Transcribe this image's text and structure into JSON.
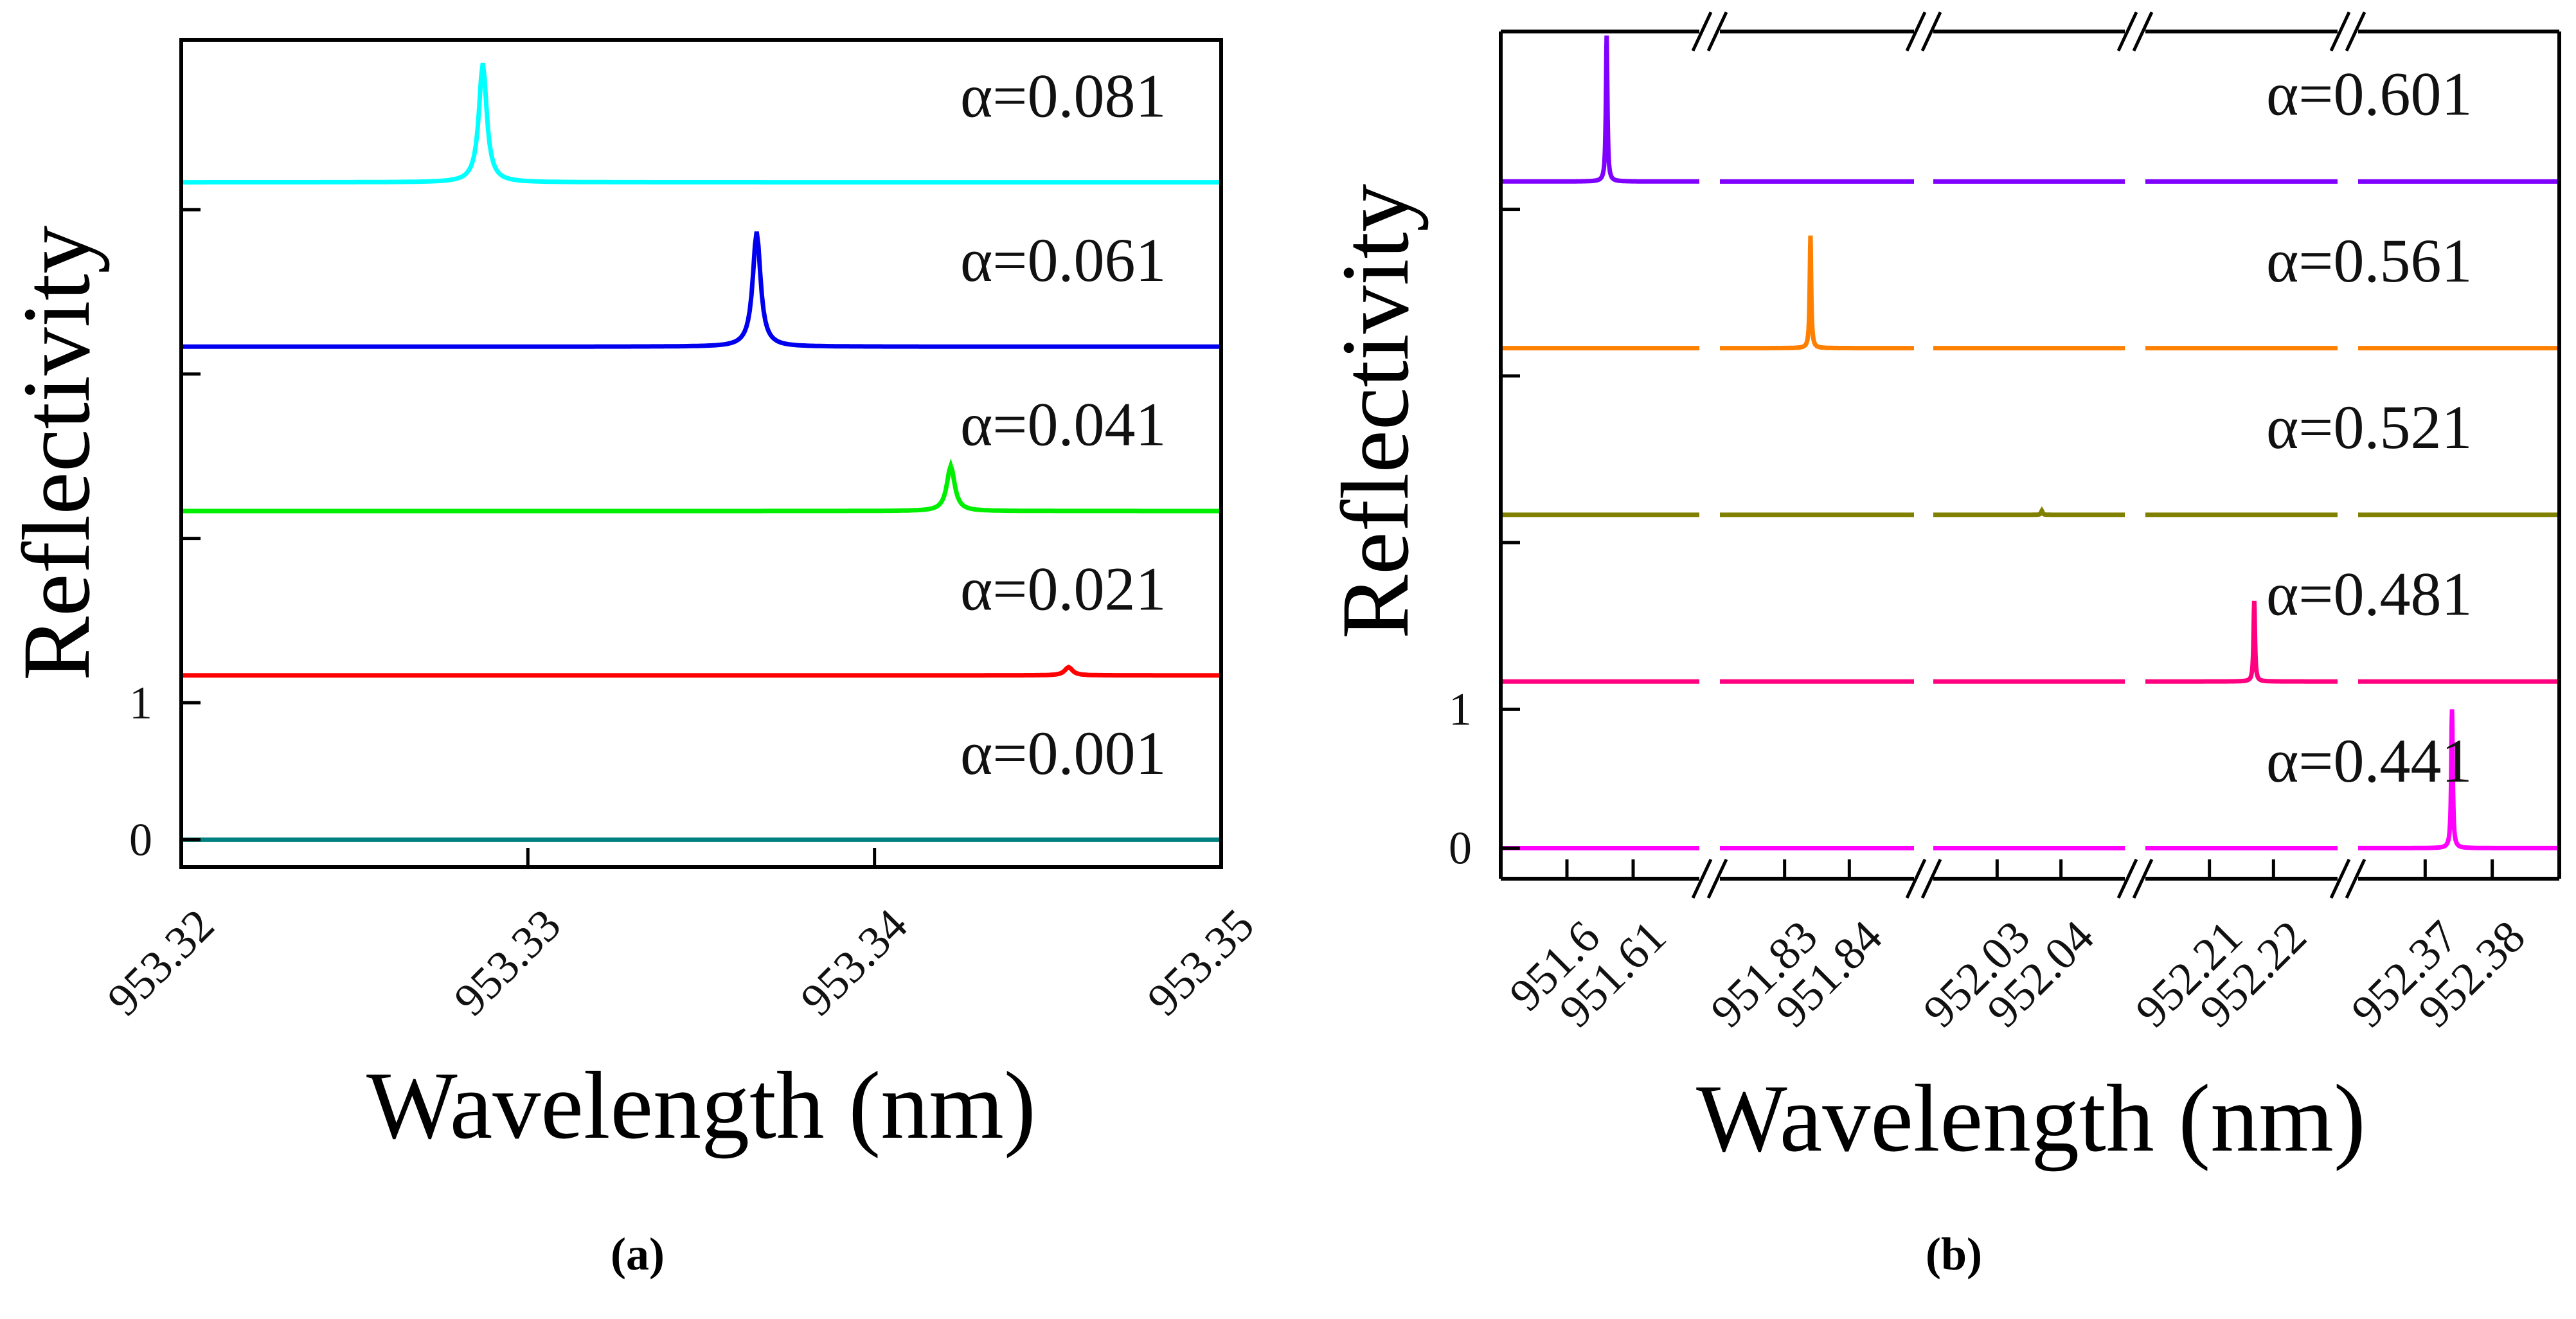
{
  "chart_data": [
    {
      "type": "line",
      "panel_label": "a",
      "caption": "(a)",
      "xlabel": "Wavelength (nm)",
      "ylabel": "Reflectivity",
      "xlim": [
        953.32,
        953.35
      ],
      "ylim": [
        -0.2,
        5.84
      ],
      "xticks": [
        953.32,
        953.33,
        953.34,
        953.35
      ],
      "xtick_labels": [
        "953.32",
        "953.33",
        "953.34",
        "953.35"
      ],
      "yticks": [
        0,
        1,
        2.2,
        3.4,
        4.6
      ],
      "ytick_labels": [
        "0",
        "1",
        "",
        "",
        ""
      ],
      "offset_step": 1.2,
      "series": [
        {
          "name": "α=0.001",
          "color": "#008080",
          "offset": 0.0,
          "peak_x": 953.3455,
          "peak_height": 0.0
        },
        {
          "name": "α=0.021",
          "color": "#ff0000",
          "offset": 1.2,
          "peak_x": 953.3456,
          "peak_height": 0.06
        },
        {
          "name": "α=0.041",
          "color": "#00ee00",
          "offset": 2.4,
          "peak_x": 953.3422,
          "peak_height": 0.33
        },
        {
          "name": "α=0.061",
          "color": "#0000ee",
          "offset": 3.6,
          "peak_x": 953.3366,
          "peak_height": 0.84
        },
        {
          "name": "α=0.081",
          "color": "#00ffff",
          "offset": 4.8,
          "peak_x": 953.3287,
          "peak_height": 0.87
        }
      ]
    },
    {
      "type": "line",
      "panel_label": "b",
      "caption": "(b)",
      "xlabel": "Wavelength (nm)",
      "ylabel": "Reflectivity",
      "broken_x_axis": true,
      "x_segments": [
        [
          951.59,
          951.62
        ],
        [
          951.82,
          951.85
        ],
        [
          952.02,
          952.05
        ],
        [
          952.2,
          952.23
        ],
        [
          952.36,
          952.39
        ]
      ],
      "ylim": [
        -0.22,
        5.88
      ],
      "xticks": [
        951.6,
        951.61,
        951.83,
        951.84,
        952.03,
        952.04,
        952.21,
        952.22,
        952.37,
        952.38
      ],
      "xtick_labels": [
        "951.6",
        "951.61",
        "951.83",
        "951.84",
        "952.03",
        "952.04",
        "952.21",
        "952.22",
        "952.37",
        "952.38"
      ],
      "yticks": [
        0,
        1,
        2.2,
        3.4,
        4.6
      ],
      "ytick_labels": [
        "0",
        "1",
        "",
        "",
        ""
      ],
      "offset_step": 1.2,
      "series": [
        {
          "name": "α=0.441",
          "color": "#ff00ff",
          "offset": 0.0,
          "peak_x": 952.374,
          "peak_height": 1.0
        },
        {
          "name": "α=0.481",
          "color": "#ff0080",
          "offset": 1.2,
          "peak_x": 952.217,
          "peak_height": 0.58
        },
        {
          "name": "α=0.521",
          "color": "#808000",
          "offset": 2.4,
          "peak_x": 952.037,
          "peak_height": 0.03
        },
        {
          "name": "α=0.561",
          "color": "#ff8000",
          "offset": 3.6,
          "peak_x": 951.834,
          "peak_height": 0.81
        },
        {
          "name": "α=0.601",
          "color": "#8000ff",
          "offset": 4.8,
          "peak_x": 951.606,
          "peak_height": 1.05
        }
      ]
    }
  ]
}
